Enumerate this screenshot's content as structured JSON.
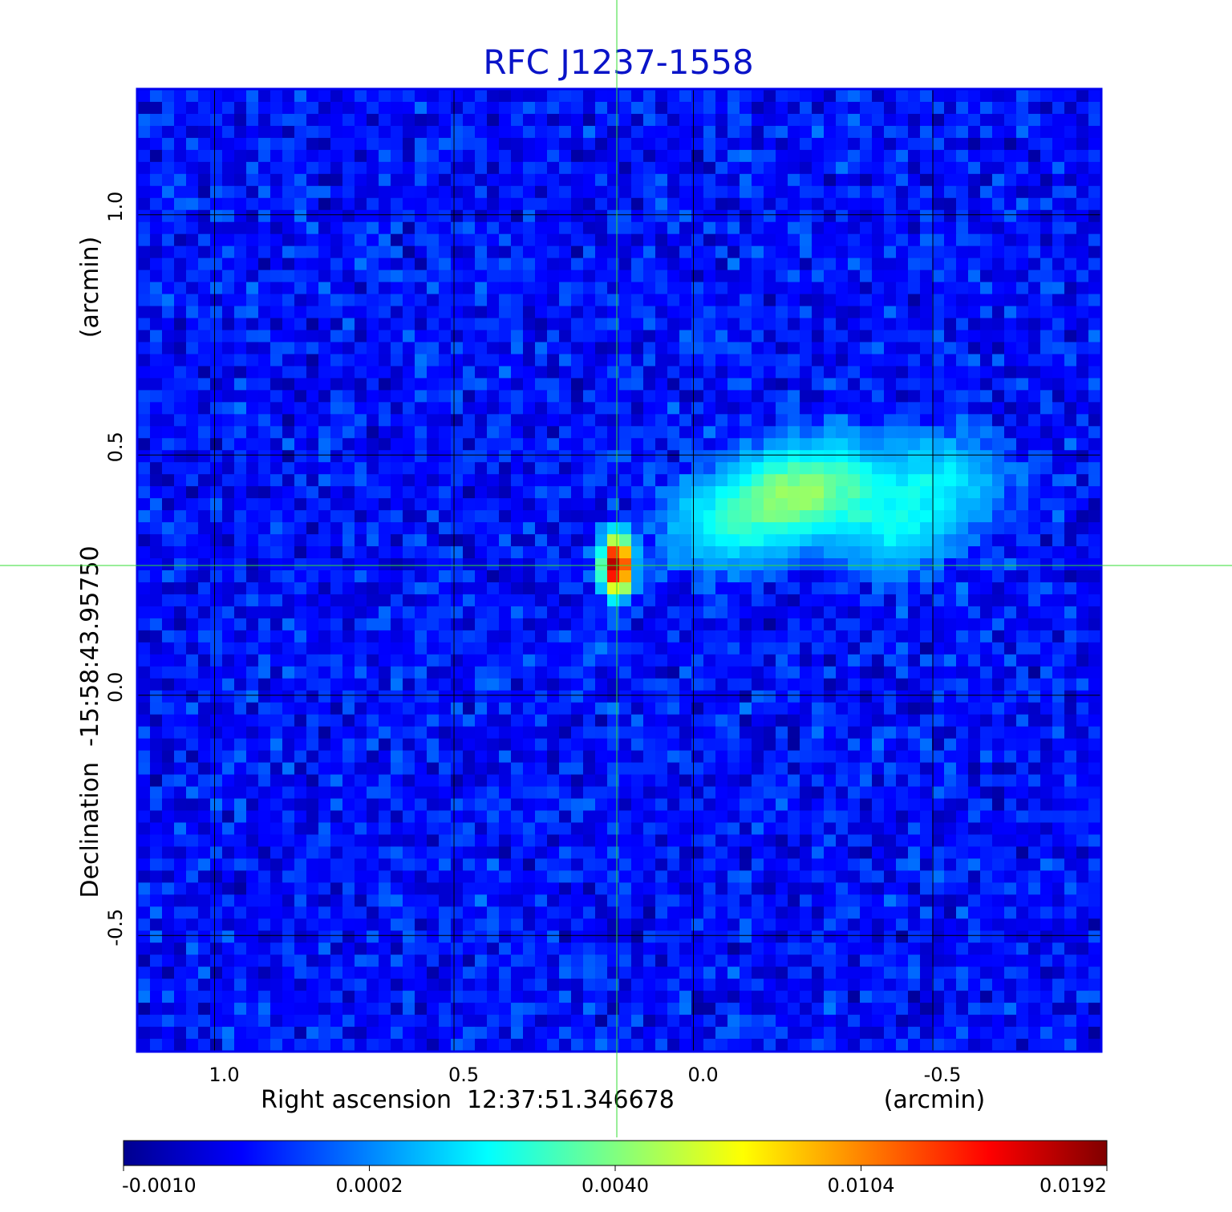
{
  "chart_data": {
    "type": "heatmap",
    "title": "RFC J1237-1558",
    "xlabel": "Right ascension  12:37:51.346678",
    "xunit": "(arcmin)",
    "ylabel": "Declination  -15:58:43.95750",
    "yunit": "(arcmin)",
    "xlim": [
      1.16,
      -0.85
    ],
    "ylim": [
      -0.74,
      1.26
    ],
    "x_ticks": [
      {
        "value": 1.0,
        "label": "1.0"
      },
      {
        "value": 0.5,
        "label": "0.5"
      },
      {
        "value": 0.0,
        "label": "0.0"
      },
      {
        "value": -0.5,
        "label": "-0.5"
      }
    ],
    "y_ticks": [
      {
        "value": 1.0,
        "label": "1.0"
      },
      {
        "value": 0.5,
        "label": "0.5"
      },
      {
        "value": 0.0,
        "label": "0.0"
      },
      {
        "value": -0.5,
        "label": "-0.5"
      }
    ],
    "grid": true,
    "crosshair": {
      "x": 0.16,
      "y": 0.27
    },
    "colorbar": {
      "position": "bottom",
      "ticks": [
        "-0.0010",
        "0.0002",
        "0.0040",
        "0.0104",
        "0.0192"
      ]
    },
    "peak": {
      "x": 0.16,
      "y": 0.27,
      "value": 0.0192
    },
    "extended_emission": [
      {
        "x": -0.05,
        "y": 0.35,
        "value": 0.0035
      },
      {
        "x": -0.15,
        "y": 0.4,
        "value": 0.004
      },
      {
        "x": -0.22,
        "y": 0.42,
        "value": 0.004
      },
      {
        "x": -0.3,
        "y": 0.45,
        "value": 0.004
      },
      {
        "x": -0.42,
        "y": 0.35,
        "value": 0.0038
      },
      {
        "x": -0.52,
        "y": 0.45,
        "value": 0.0036
      }
    ],
    "colors": {
      "frame": "#0000ee",
      "grid": "#000000",
      "crosshair": "#33dd33",
      "title": "#0a14c8"
    }
  }
}
